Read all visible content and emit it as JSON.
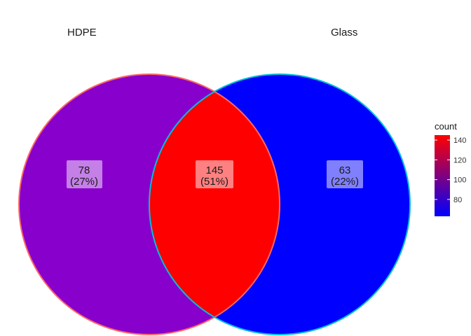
{
  "chart_data": {
    "type": "venn",
    "sets": [
      {
        "name": "HDPE",
        "color": "#8800CC",
        "border": "#FF6666"
      },
      {
        "name": "Glass",
        "color": "#0000FF",
        "border": "#00BFD8"
      }
    ],
    "regions": [
      {
        "sets": [
          "HDPE"
        ],
        "count": "78",
        "percent": "(27%)",
        "value": 78,
        "fill": "#8800CC"
      },
      {
        "sets": [
          "HDPE",
          "Glass"
        ],
        "count": "145",
        "percent": "(51%)",
        "value": 145,
        "fill": "#FF0000"
      },
      {
        "sets": [
          "Glass"
        ],
        "count": "63",
        "percent": "(22%)",
        "value": 63,
        "fill": "#0000FF"
      }
    ],
    "legend": {
      "title": "count",
      "ticks": [
        "80",
        "100",
        "120",
        "140"
      ],
      "tick_values": [
        80,
        100,
        120,
        140
      ],
      "range": [
        63,
        145
      ],
      "low_color": "#0000FF",
      "high_color": "#FF0000",
      "placement": "right"
    }
  }
}
